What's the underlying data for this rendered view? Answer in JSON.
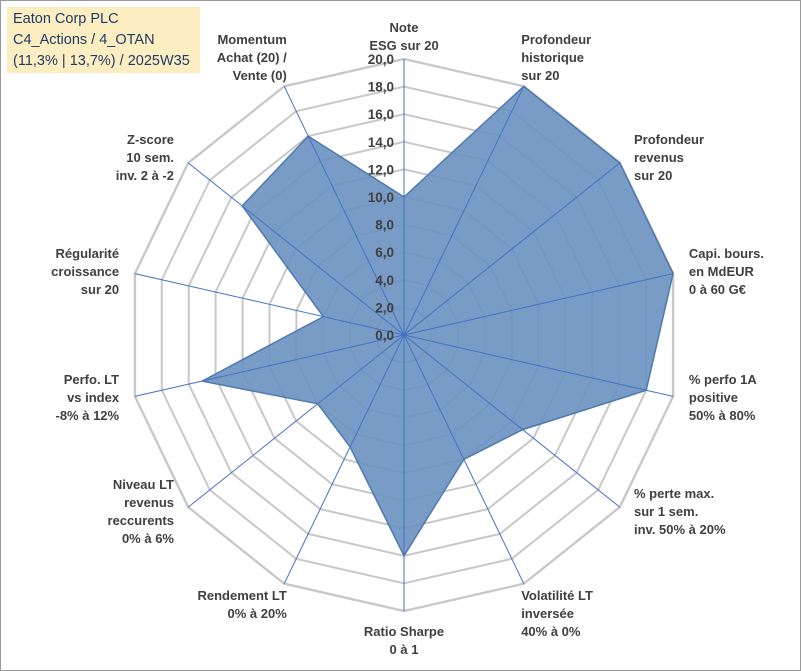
{
  "info": {
    "line1": "Eaton Corp PLC",
    "line2": "C4_Actions / 4_OTAN",
    "line3": "(11,3% | 13,7%) / 2025W35"
  },
  "colors": {
    "fill": "#6a91c0",
    "stroke": "#4f7ab0",
    "grid": "#c8c8c8",
    "spoke": "#4472c4",
    "text": "#404040",
    "infoBg": "#fdeec2",
    "infoText": "#1f3b68"
  },
  "chart_data": {
    "type": "radar",
    "title": "",
    "range": [
      0,
      20
    ],
    "step": 2,
    "tick_labels": [
      "0,0",
      "2,0",
      "4,0",
      "6,0",
      "8,0",
      "10,0",
      "12,0",
      "14,0",
      "16,0",
      "18,0",
      "20,0"
    ],
    "grid": true,
    "axes": [
      {
        "label": [
          "Note",
          "ESG sur 20"
        ],
        "value": 10
      },
      {
        "label": [
          "Profondeur",
          "historique",
          "sur 20"
        ],
        "value": 20
      },
      {
        "label": [
          "Profondeur",
          "revenus",
          "sur 20"
        ],
        "value": 20
      },
      {
        "label": [
          "Capi. bours.",
          "en MdEUR",
          "0 à 60 G€"
        ],
        "value": 20
      },
      {
        "label": [
          "% perfo 1A",
          "positive",
          "50% à 80%"
        ],
        "value": 18
      },
      {
        "label": [
          "% perte max.",
          "sur 1 sem.",
          "inv. 50% à 20%"
        ],
        "value": 11
      },
      {
        "label": [
          "Volatilité LT",
          "inversée",
          "40% à 0%"
        ],
        "value": 10
      },
      {
        "label": [
          "Ratio Sharpe",
          "0 à 1"
        ],
        "value": 16
      },
      {
        "label": [
          "Rendement LT",
          "0% à 20%"
        ],
        "value": 9
      },
      {
        "label": [
          "Niveau LT",
          "revenus",
          "reccurents",
          "0% à 6%"
        ],
        "value": 8
      },
      {
        "label": [
          "Perfo. LT",
          "vs index",
          "-8% à 12%"
        ],
        "value": 15
      },
      {
        "label": [
          "Régularité",
          "croissance",
          "sur 20"
        ],
        "value": 6
      },
      {
        "label": [
          "Z-score",
          "10 sem.",
          "inv. 2 à -2"
        ],
        "value": 15
      },
      {
        "label": [
          "Momentum",
          "Achat (20) /",
          "Vente (0)"
        ],
        "value": 16
      }
    ]
  }
}
